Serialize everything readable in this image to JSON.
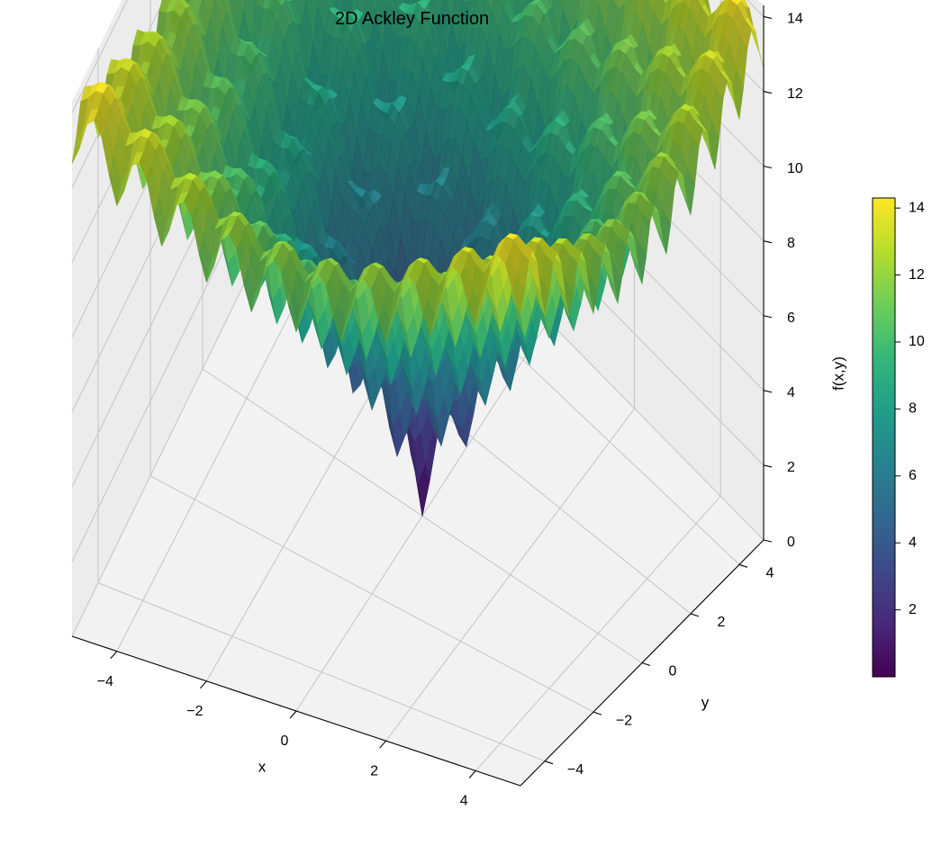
{
  "chart_data": {
    "type": "surface3d",
    "title": "2D Ackley Function",
    "xlabel": "x",
    "ylabel": "y",
    "zlabel": "f(x,y)",
    "xlim": [
      -5,
      5
    ],
    "ylim": [
      -5,
      5
    ],
    "zlim": [
      0,
      14.3
    ],
    "function": "f(x,y) = -20*exp(-0.2*sqrt(0.5*(x^2+y^2))) - exp(0.5*(cos(2*pi*x)+cos(2*pi*y))) + e + 20",
    "x_ticks": [
      -4,
      -2,
      0,
      2,
      4
    ],
    "y_ticks": [
      -4,
      -2,
      0,
      2,
      4
    ],
    "z_ticks": [
      0,
      2,
      4,
      6,
      8,
      10,
      12,
      14
    ],
    "colormap": "viridis",
    "colorbar": {
      "min": 0,
      "max": 14.3,
      "ticks": [
        2,
        4,
        6,
        8,
        10,
        12,
        14
      ]
    },
    "grid": true
  },
  "colors": {
    "pane_floor": "#f2f2f2",
    "pane_wall": "#ececec",
    "grid": "#c4c4c4",
    "axis": "#000000",
    "viridis": [
      "#440154",
      "#482878",
      "#3e4989",
      "#31688e",
      "#26828e",
      "#1f9e89",
      "#35b779",
      "#6ece58",
      "#b5de2b",
      "#fde725"
    ]
  }
}
